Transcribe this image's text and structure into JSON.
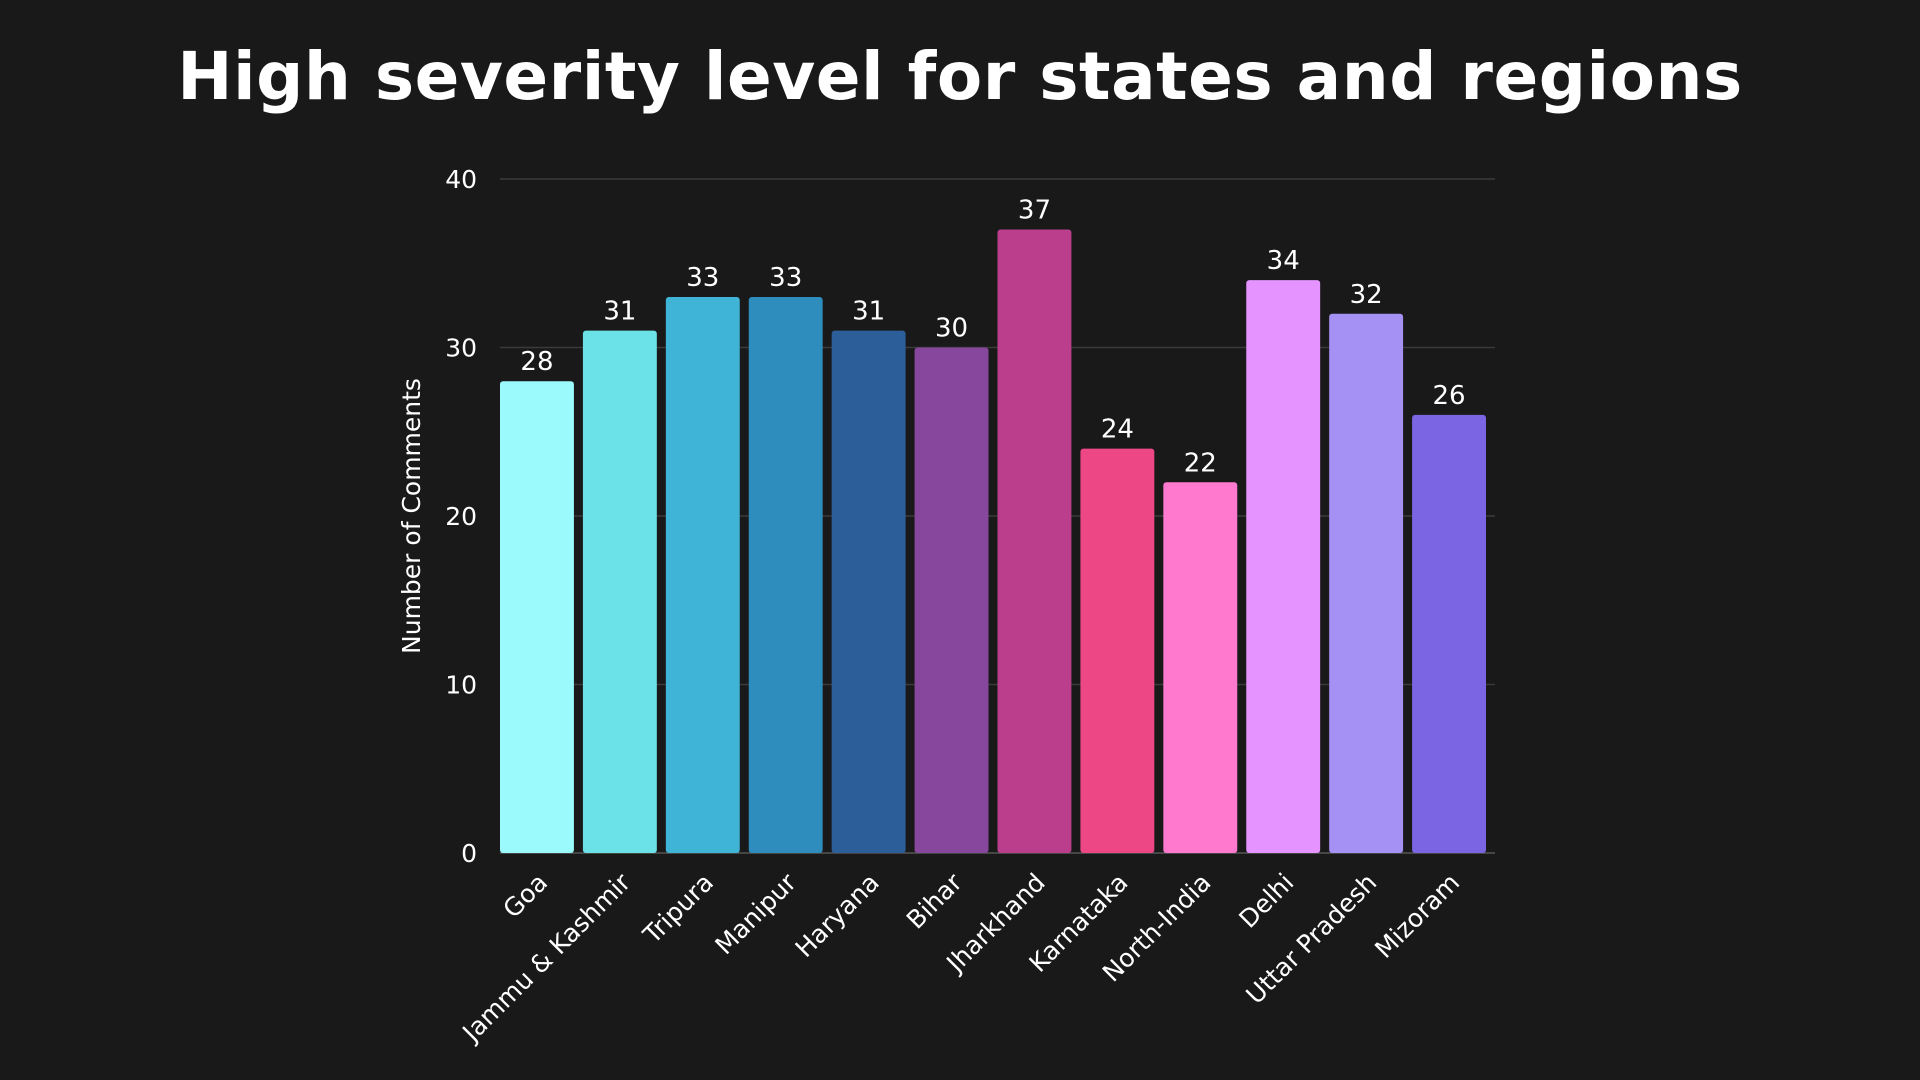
{
  "chart_data": {
    "type": "bar",
    "title": "High severity level for states and regions",
    "xlabel": "",
    "ylabel": "Number of Comments",
    "ylim": [
      0,
      40
    ],
    "yticks": [
      0,
      10,
      20,
      30,
      40
    ],
    "grid": true,
    "categories": [
      "Goa",
      "Jammu & Kashmir",
      "Tripura",
      "Manipur",
      "Haryana",
      "Bihar",
      "Jharkhand",
      "Karnataka",
      "North-India",
      "Delhi",
      "Uttar Pradesh",
      "Mizoram"
    ],
    "values": [
      28,
      31,
      33,
      33,
      31,
      30,
      37,
      24,
      22,
      34,
      32,
      26
    ],
    "value_labels": [
      "28",
      "31",
      "33",
      "33",
      "31",
      "30",
      "37",
      "24",
      "22",
      "34",
      "32",
      "26"
    ],
    "colors": [
      "#9AFAFC",
      "#6AE2E8",
      "#3FB4D6",
      "#2E8DBC",
      "#2C5F9A",
      "#86479C",
      "#BA3E8C",
      "#ED4785",
      "#FF7ACF",
      "#E593FF",
      "#A591F3",
      "#7B65E3"
    ],
    "background": "#191919"
  }
}
